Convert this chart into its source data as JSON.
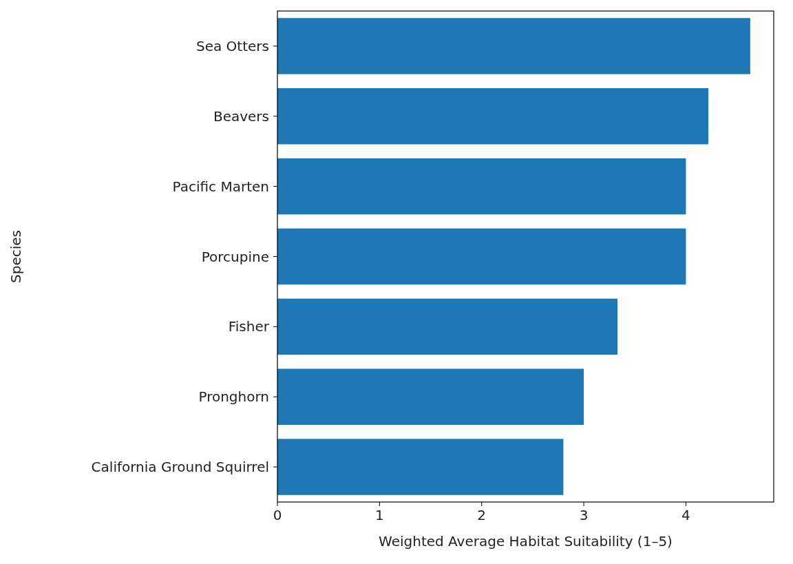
{
  "chart_data": {
    "type": "bar",
    "orientation": "horizontal",
    "xlabel": "Weighted Average Habitat Suitability (1–5)",
    "ylabel": "Species",
    "categories": [
      "Sea Otters",
      "Beavers",
      "Pacific Marten",
      "Porcupine",
      "Fisher",
      "Pronghorn",
      "California Ground Squirrel"
    ],
    "values": [
      4.63,
      4.22,
      4.0,
      4.0,
      3.33,
      3.0,
      2.8
    ],
    "color": "#1f77b4",
    "xlim": [
      0,
      4.86
    ],
    "xticks": [
      0,
      1,
      2,
      3,
      4
    ],
    "grid": false
  }
}
